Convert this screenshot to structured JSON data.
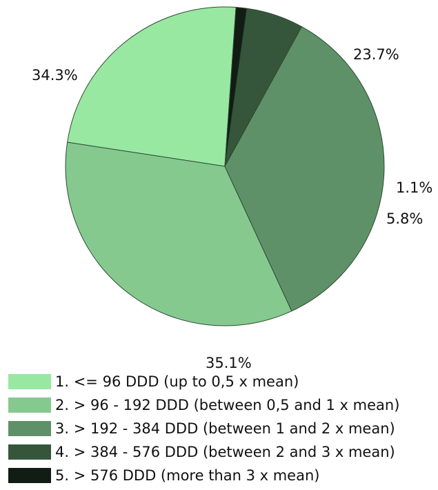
{
  "chart_data": {
    "type": "pie",
    "title": "",
    "slices": [
      {
        "label": "1. <= 96 DDD (up to 0,5 x mean)",
        "value": 23.7,
        "value_label": "23.7%",
        "color": "#98e8a2"
      },
      {
        "label": "2. > 96 - 192 DDD (between 0,5 and 1 x mean)",
        "value": 34.3,
        "value_label": "34.3%",
        "color": "#85c98e"
      },
      {
        "label": "3. > 192 - 384 DDD (between 1 and 2 x mean)",
        "value": 35.1,
        "value_label": "35.1%",
        "color": "#5f9168"
      },
      {
        "label": "4. > 384 - 576 DDD (between 2 and 3 x mean)",
        "value": 5.8,
        "value_label": "5.8%",
        "color": "#35563b"
      },
      {
        "label": "5. > 576 DDD (more than 3 x mean)",
        "value": 1.1,
        "value_label": "1.1%",
        "color": "#111c14"
      }
    ],
    "slice_edge_color": "#2e4a33",
    "legend_position": "bottom-left",
    "start_angle_deg": -86,
    "direction": "counterclockwise"
  }
}
